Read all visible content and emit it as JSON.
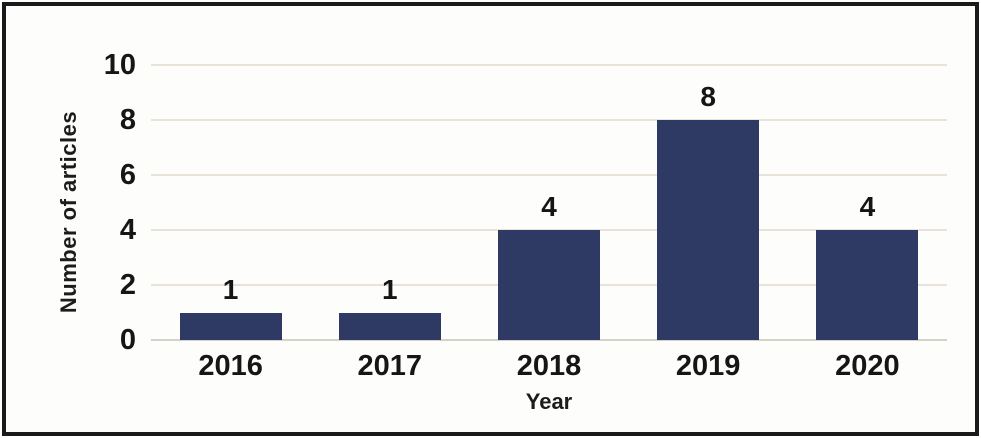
{
  "figure": {
    "background_color": "#fdfdfc",
    "frame_border_color": "#1a1a1a"
  },
  "chart_data": {
    "type": "bar",
    "title": "",
    "categories": [
      "2016",
      "2017",
      "2018",
      "2019",
      "2020"
    ],
    "values": [
      1,
      1,
      4,
      8,
      4
    ],
    "data_labels": [
      "1",
      "1",
      "4",
      "8",
      "4"
    ],
    "xlabel": "Year",
    "ylabel": "Number of articles",
    "ylim": [
      0,
      10
    ],
    "yticks": [
      0,
      2,
      4,
      6,
      8,
      10
    ],
    "ytick_labels": [
      "0",
      "2",
      "4",
      "6",
      "8",
      "10"
    ],
    "grid": "horizontal-only",
    "legend_position": "none",
    "bar_color": "#2e3a64",
    "gridline_color": "#e8e2d9",
    "baseline_color": "#d6d2ca",
    "text_color": "#161616"
  }
}
